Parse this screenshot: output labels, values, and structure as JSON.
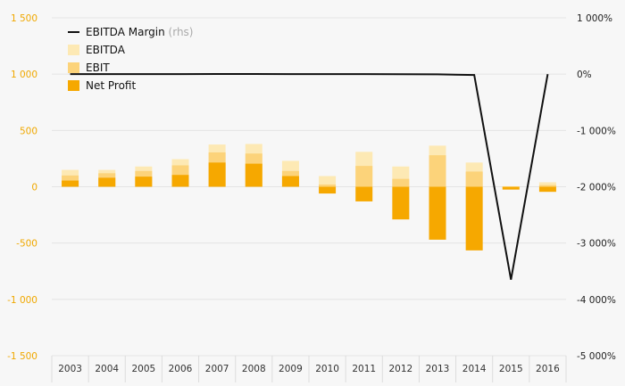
{
  "chart_data": {
    "type": "bar",
    "categories": [
      "2003",
      "2004",
      "2005",
      "2006",
      "2007",
      "2008",
      "2009",
      "2010",
      "2011",
      "2012",
      "2013",
      "2014",
      "2015",
      "2016"
    ],
    "series": [
      {
        "name": "EBITDA",
        "kind": "bar",
        "color": "#fde9b4",
        "values": [
          150,
          150,
          180,
          245,
          375,
          380,
          230,
          95,
          310,
          180,
          365,
          215,
          5,
          40
        ]
      },
      {
        "name": "EBIT",
        "kind": "bar",
        "color": "#fcd37a",
        "values": [
          100,
          120,
          140,
          190,
          305,
          295,
          140,
          20,
          185,
          70,
          280,
          135,
          -10,
          15
        ]
      },
      {
        "name": "Net Profit",
        "kind": "bar",
        "color": "#f6a800",
        "values": [
          55,
          80,
          90,
          105,
          215,
          205,
          95,
          -60,
          -130,
          -290,
          -470,
          -565,
          -25,
          -45
        ]
      },
      {
        "name": "EBITDA Margin",
        "name_suffix": "(rhs)",
        "kind": "line",
        "axis": "right",
        "color": "#111111",
        "values": [
          1,
          1,
          1,
          1,
          2,
          2,
          1,
          0,
          0,
          -2,
          -4,
          -15,
          -3650,
          0
        ]
      }
    ],
    "left_axis": {
      "ylim": [
        -1500,
        1500
      ],
      "ticks": [
        -1500,
        -1000,
        -500,
        0,
        500,
        1000,
        1500
      ],
      "tick_labels": [
        "-1 500",
        "-1 000",
        "-500",
        "0",
        "500",
        "1 000",
        "1 500"
      ]
    },
    "right_axis": {
      "ylim": [
        -5000,
        1000
      ],
      "ticks": [
        -5000,
        -4000,
        -3000,
        -2000,
        -1000,
        0,
        1000
      ],
      "tick_labels": [
        "-5 000%",
        "-4 000%",
        "-3 000%",
        "-2 000%",
        "-1 000%",
        "0%",
        "1 000%"
      ]
    },
    "legend": {
      "placement": "top-left",
      "order": [
        "EBITDA Margin",
        "EBITDA",
        "EBIT",
        "Net Profit"
      ]
    },
    "grid": true
  }
}
